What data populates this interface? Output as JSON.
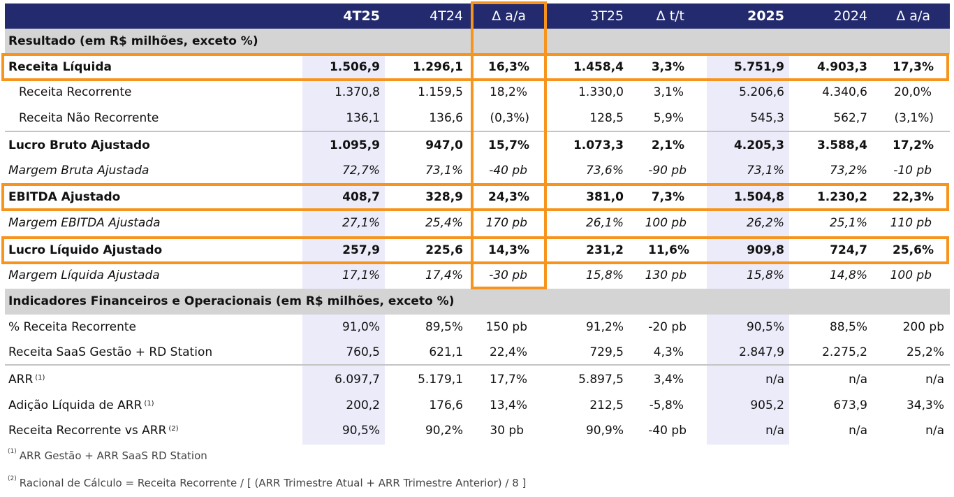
{
  "header": {
    "columns": [
      "4T25",
      "4T24",
      "Δ a/a",
      "3T25",
      "Δ t/t",
      "2025",
      "2024",
      "Δ a/a"
    ]
  },
  "sections": {
    "resultado": "Resultado (em R$ milhões, exceto %)",
    "indicadores": "Indicadores Financeiros e Operacionais (em R$ milhões, exceto %)"
  },
  "rows": [
    {
      "label": "Receita Líquida",
      "values": [
        "1.506,9",
        "1.296,1",
        "16,3%",
        "1.458,4",
        "3,3%",
        "5.751,9",
        "4.903,3",
        "17,3%"
      ]
    },
    {
      "label": "Receita Recorrente",
      "values": [
        "1.370,8",
        "1.159,5",
        "18,2%",
        "1.330,0",
        "3,1%",
        "5.206,6",
        "4.340,6",
        "20,0%"
      ]
    },
    {
      "label": "Receita Não Recorrente",
      "values": [
        "136,1",
        "136,6",
        "(0,3%)",
        "128,5",
        "5,9%",
        "545,3",
        "562,7",
        "(3,1%)"
      ]
    },
    {
      "label": "Lucro Bruto Ajustado",
      "values": [
        "1.095,9",
        "947,0",
        "15,7%",
        "1.073,3",
        "2,1%",
        "4.205,3",
        "3.588,4",
        "17,2%"
      ]
    },
    {
      "label": "Margem Bruta Ajustada",
      "values": [
        "72,7%",
        "73,1%",
        "-40 pb",
        "73,6%",
        "-90 pb",
        "73,1%",
        "73,2%",
        "-10 pb"
      ]
    },
    {
      "label": "EBITDA Ajustado",
      "values": [
        "408,7",
        "328,9",
        "24,3%",
        "381,0",
        "7,3%",
        "1.504,8",
        "1.230,2",
        "22,3%"
      ]
    },
    {
      "label": "Margem EBITDA Ajustada",
      "values": [
        "27,1%",
        "25,4%",
        "170 pb",
        "26,1%",
        "100 pb",
        "26,2%",
        "25,1%",
        "110 pb"
      ]
    },
    {
      "label": "Lucro Líquido Ajustado",
      "values": [
        "257,9",
        "225,6",
        "14,3%",
        "231,2",
        "11,6%",
        "909,8",
        "724,7",
        "25,6%"
      ]
    },
    {
      "label": "Margem Líquida Ajustada",
      "values": [
        "17,1%",
        "17,4%",
        "-30 pb",
        "15,8%",
        "130 pb",
        "15,8%",
        "14,8%",
        "100 pb"
      ]
    },
    {
      "label": "% Receita Recorrente",
      "values": [
        "91,0%",
        "89,5%",
        "150 pb",
        "91,2%",
        "-20 pb",
        "90,5%",
        "88,5%",
        "200 pb"
      ]
    },
    {
      "label": "Receita SaaS Gestão + RD Station",
      "values": [
        "760,5",
        "621,1",
        "22,4%",
        "729,5",
        "4,3%",
        "2.847,9",
        "2.275,2",
        "25,2%"
      ]
    },
    {
      "label": "ARR",
      "note": "(1)",
      "values": [
        "6.097,7",
        "5.179,1",
        "17,7%",
        "5.897,5",
        "3,4%",
        "n/a",
        "n/a",
        "n/a"
      ]
    },
    {
      "label": "Adição Líquida de ARR",
      "note": "(1)",
      "values": [
        "200,2",
        "176,6",
        "13,4%",
        "212,5",
        "-5,8%",
        "905,2",
        "673,9",
        "34,3%"
      ]
    },
    {
      "label": "Receita Recorrente vs ARR",
      "note": "(2)",
      "values": [
        "90,5%",
        "90,2%",
        "30 pb",
        "90,9%",
        "-40 pb",
        "n/a",
        "n/a",
        "n/a"
      ]
    }
  ],
  "footnotes": [
    {
      "mark": "(1)",
      "text": "ARR Gestão + ARR SaaS RD Station"
    },
    {
      "mark": "(2)",
      "text": "Racional de Cálculo = Receita Recorrente / [ (ARR Trimestre Atual + ARR Trimestre Anterior) / 8 ]"
    }
  ],
  "colors": {
    "header": "#232b6e",
    "highlight": "#f7941d",
    "section": "#d4d4d4",
    "column_shade": "#ecebfa"
  }
}
